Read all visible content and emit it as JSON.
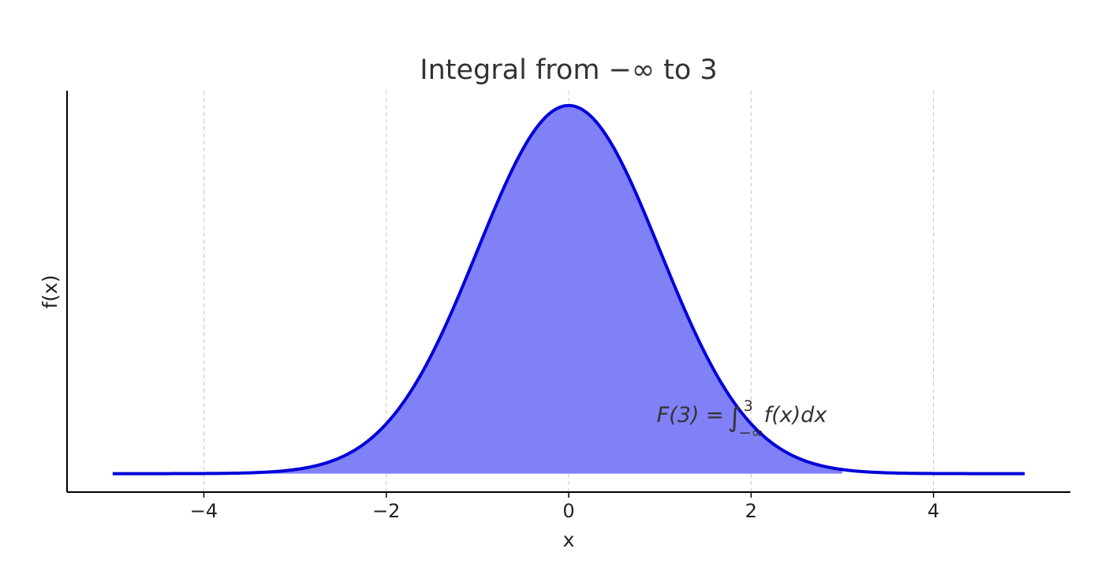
{
  "chart_data": {
    "type": "area",
    "title": "Integral from −∞ to 3",
    "xlabel": "x",
    "ylabel": "f(x)",
    "xlim": [
      -5.5,
      5.5
    ],
    "ylim": [
      -0.02,
      0.415
    ],
    "x_ticks": [
      -4,
      -2,
      0,
      2,
      4
    ],
    "x_tick_labels": [
      "−4",
      "−2",
      "0",
      "2",
      "4"
    ],
    "grid": {
      "x": true,
      "y": false,
      "style": "dashed"
    },
    "series": [
      {
        "function": "standard normal pdf",
        "x_range": [
          -5,
          5
        ],
        "color": "#0000d9",
        "points": [
          [
            -5,
            0.0
          ],
          [
            -4,
            0.0001
          ],
          [
            -3,
            0.0044
          ],
          [
            -2.5,
            0.0175
          ],
          [
            -2,
            0.054
          ],
          [
            -1.5,
            0.1295
          ],
          [
            -1,
            0.242
          ],
          [
            -0.5,
            0.3521
          ],
          [
            0,
            0.3989
          ],
          [
            0.5,
            0.3521
          ],
          [
            1,
            0.242
          ],
          [
            1.5,
            0.1295
          ],
          [
            2,
            0.054
          ],
          [
            2.5,
            0.0175
          ],
          [
            3,
            0.0044
          ],
          [
            4,
            0.0001
          ],
          [
            5,
            0.0
          ]
        ]
      }
    ],
    "shaded_region": {
      "x_from": -5,
      "x_to": 3,
      "color": "#8080f7"
    },
    "annotation": {
      "prefix": "F(3) = ",
      "integral": "∫",
      "upper": "3",
      "lower": "−∞",
      "suffix": "f(x)dx",
      "x": 1.0,
      "y": 0.056
    }
  }
}
